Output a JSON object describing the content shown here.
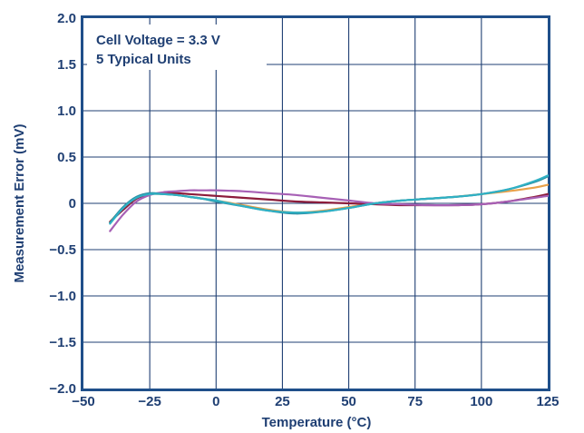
{
  "chart_data": {
    "type": "line",
    "title": "",
    "xlabel": "Temperature (°C)",
    "ylabel": "Measurement Error (mV)",
    "xlim": [
      -50,
      125
    ],
    "ylim": [
      -2.0,
      2.0
    ],
    "x_ticks": [
      -50,
      -25,
      0,
      25,
      50,
      75,
      100,
      125
    ],
    "x_tick_labels": [
      "−50",
      "−25",
      "0",
      "25",
      "50",
      "75",
      "100",
      "125"
    ],
    "y_ticks": [
      2.0,
      1.5,
      1.0,
      0.5,
      0,
      -0.5,
      -1.0,
      -1.5,
      -2.0
    ],
    "y_tick_labels": [
      "2.0",
      "1.5",
      "1.0",
      "0.5",
      "0",
      "−0.5",
      "−1.0",
      "−1.5",
      "−2.0"
    ],
    "grid": true,
    "annotations": [
      "Cell Voltage = 3.3 V",
      "5 Typical Units"
    ],
    "colors": {
      "frame": "#1f4f8a",
      "text": "#1f3f73",
      "grid": "#1f3f73"
    },
    "series": [
      {
        "color": "#e8a14a",
        "x": [
          -40,
          -35,
          -30,
          -25,
          -20,
          -15,
          -10,
          -5,
          0,
          10,
          20,
          30,
          40,
          50,
          60,
          70,
          80,
          90,
          100,
          110,
          120,
          125
        ],
        "y": [
          -0.2,
          -0.05,
          0.06,
          0.1,
          0.1,
          0.09,
          0.07,
          0.05,
          0.03,
          -0.02,
          -0.07,
          -0.1,
          -0.08,
          -0.04,
          0.0,
          0.03,
          0.05,
          0.07,
          0.1,
          0.13,
          0.17,
          0.2
        ]
      },
      {
        "color": "#8c1c3b",
        "x": [
          -40,
          -35,
          -30,
          -25,
          -20,
          -15,
          -10,
          -5,
          0,
          10,
          20,
          30,
          40,
          50,
          60,
          70,
          80,
          90,
          100,
          110,
          120,
          125
        ],
        "y": [
          -0.2,
          -0.07,
          0.05,
          0.1,
          0.11,
          0.11,
          0.1,
          0.09,
          0.08,
          0.06,
          0.04,
          0.02,
          0.01,
          0.0,
          -0.01,
          -0.02,
          -0.02,
          -0.02,
          -0.01,
          0.02,
          0.07,
          0.1
        ]
      },
      {
        "color": "#a760b5",
        "x": [
          -40,
          -35,
          -30,
          -25,
          -20,
          -15,
          -10,
          -5,
          0,
          10,
          20,
          30,
          40,
          50,
          60,
          70,
          80,
          90,
          100,
          110,
          120,
          125
        ],
        "y": [
          -0.3,
          -0.12,
          0.02,
          0.09,
          0.12,
          0.13,
          0.14,
          0.14,
          0.14,
          0.13,
          0.11,
          0.09,
          0.06,
          0.03,
          0.0,
          -0.01,
          -0.02,
          -0.02,
          -0.01,
          0.02,
          0.06,
          0.08
        ]
      },
      {
        "color": "#2a8ba0",
        "x": [
          -40,
          -35,
          -30,
          -25,
          -20,
          -15,
          -10,
          -5,
          0,
          10,
          20,
          30,
          40,
          50,
          60,
          70,
          80,
          90,
          100,
          110,
          120,
          125
        ],
        "y": [
          -0.21,
          -0.04,
          0.07,
          0.11,
          0.1,
          0.09,
          0.07,
          0.05,
          0.02,
          -0.03,
          -0.08,
          -0.11,
          -0.09,
          -0.05,
          0.0,
          0.03,
          0.05,
          0.07,
          0.1,
          0.15,
          0.23,
          0.29
        ]
      },
      {
        "color": "#2fb0c4",
        "x": [
          -40,
          -35,
          -30,
          -25,
          -20,
          -15,
          -10,
          -5,
          0,
          10,
          20,
          30,
          40,
          50,
          60,
          70,
          80,
          90,
          100,
          110,
          120,
          125
        ],
        "y": [
          -0.22,
          -0.05,
          0.06,
          0.1,
          0.1,
          0.09,
          0.07,
          0.05,
          0.03,
          -0.03,
          -0.08,
          -0.1,
          -0.09,
          -0.05,
          0.0,
          0.03,
          0.05,
          0.07,
          0.1,
          0.15,
          0.24,
          0.3
        ]
      }
    ]
  }
}
